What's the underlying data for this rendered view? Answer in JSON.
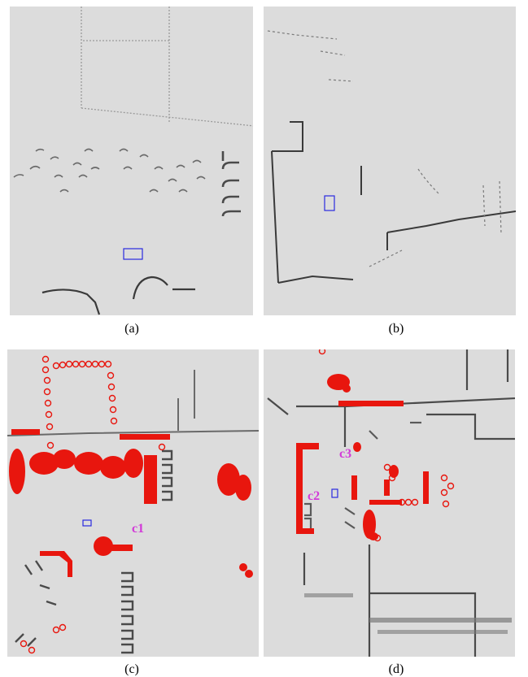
{
  "figure": {
    "panels": [
      {
        "id": "a",
        "caption": "(a)"
      },
      {
        "id": "b",
        "caption": "(b)"
      },
      {
        "id": "c",
        "caption": "(c)",
        "cluster_labels": [
          "c1"
        ]
      },
      {
        "id": "d",
        "caption": "(d)",
        "cluster_labels": [
          "c2",
          "c3"
        ]
      }
    ],
    "colors": {
      "background": "#dcdcdc",
      "structure": "#5a5a5a",
      "detected_points": "#e8160e",
      "ego_box": "#2a2ae0",
      "cluster_label": "#d23ad8"
    }
  }
}
